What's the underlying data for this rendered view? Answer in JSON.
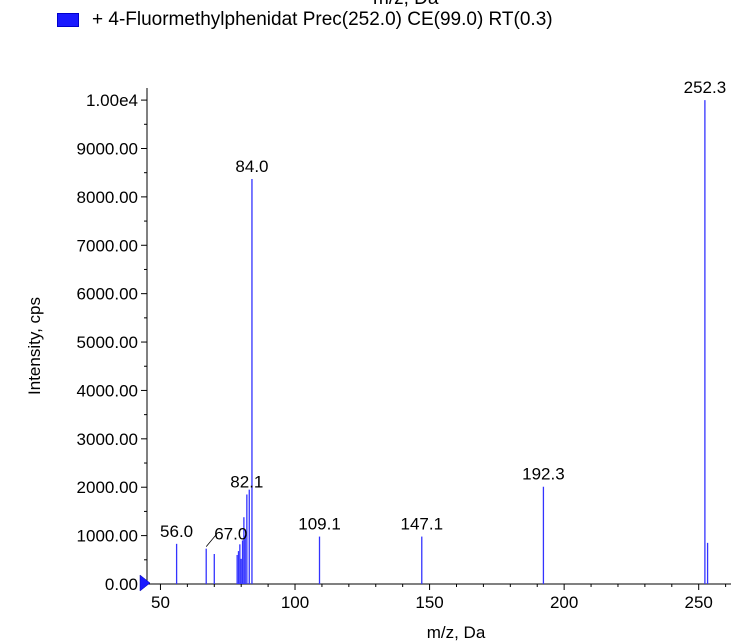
{
  "top_clipped_text": "m/z, Da",
  "legend": {
    "label": "+ 4-Fluormethylphenidat Prec(252.0) CE(99.0) RT(0.3)",
    "swatch_color": "#1a1aff"
  },
  "chart_data": {
    "type": "bar",
    "xlabel": "m/z, Da",
    "ylabel": "Intensity, cps",
    "xlim": [
      45,
      262
    ],
    "ylim": [
      0,
      10250
    ],
    "x_ticks": [
      50,
      100,
      150,
      200,
      250
    ],
    "x_tick_labels": [
      "50",
      "100",
      "150",
      "200",
      "250"
    ],
    "y_ticks": [
      0,
      1000,
      2000,
      3000,
      4000,
      5000,
      6000,
      7000,
      8000,
      9000,
      10000
    ],
    "y_tick_labels": [
      "0.00",
      "1000.00",
      "2000.00",
      "3000.00",
      "4000.00",
      "5000.00",
      "6000.00",
      "7000.00",
      "8000.00",
      "9000.00",
      "1.00e4"
    ],
    "series_color": "#3333ff",
    "peaks": [
      {
        "mz": 56.0,
        "intensity": 830
      },
      {
        "mz": 67.0,
        "intensity": 730
      },
      {
        "mz": 70.0,
        "intensity": 620
      },
      {
        "mz": 78.5,
        "intensity": 600
      },
      {
        "mz": 79.0,
        "intensity": 680
      },
      {
        "mz": 79.5,
        "intensity": 820
      },
      {
        "mz": 80.0,
        "intensity": 520
      },
      {
        "mz": 80.5,
        "intensity": 900
      },
      {
        "mz": 81.0,
        "intensity": 1380
      },
      {
        "mz": 81.5,
        "intensity": 1000
      },
      {
        "mz": 82.1,
        "intensity": 1850
      },
      {
        "mz": 83.0,
        "intensity": 1950
      },
      {
        "mz": 84.0,
        "intensity": 8370
      },
      {
        "mz": 109.1,
        "intensity": 980
      },
      {
        "mz": 147.1,
        "intensity": 980
      },
      {
        "mz": 192.3,
        "intensity": 2010
      },
      {
        "mz": 252.3,
        "intensity": 10000
      },
      {
        "mz": 253.3,
        "intensity": 850
      }
    ],
    "peak_labels": [
      {
        "text": "56.0",
        "mz": 56.0,
        "intensity": 830
      },
      {
        "text": "67.0",
        "mz": 67.0,
        "intensity": 730,
        "leader": true
      },
      {
        "text": "82.1",
        "mz": 82.1,
        "intensity": 1850
      },
      {
        "text": "84.0",
        "mz": 84.0,
        "intensity": 8370
      },
      {
        "text": "109.1",
        "mz": 109.1,
        "intensity": 980
      },
      {
        "text": "147.1",
        "mz": 147.1,
        "intensity": 980
      },
      {
        "text": "192.3",
        "mz": 192.3,
        "intensity": 2010
      },
      {
        "text": "252.3",
        "mz": 252.3,
        "intensity": 10000
      }
    ],
    "grid": false
  }
}
